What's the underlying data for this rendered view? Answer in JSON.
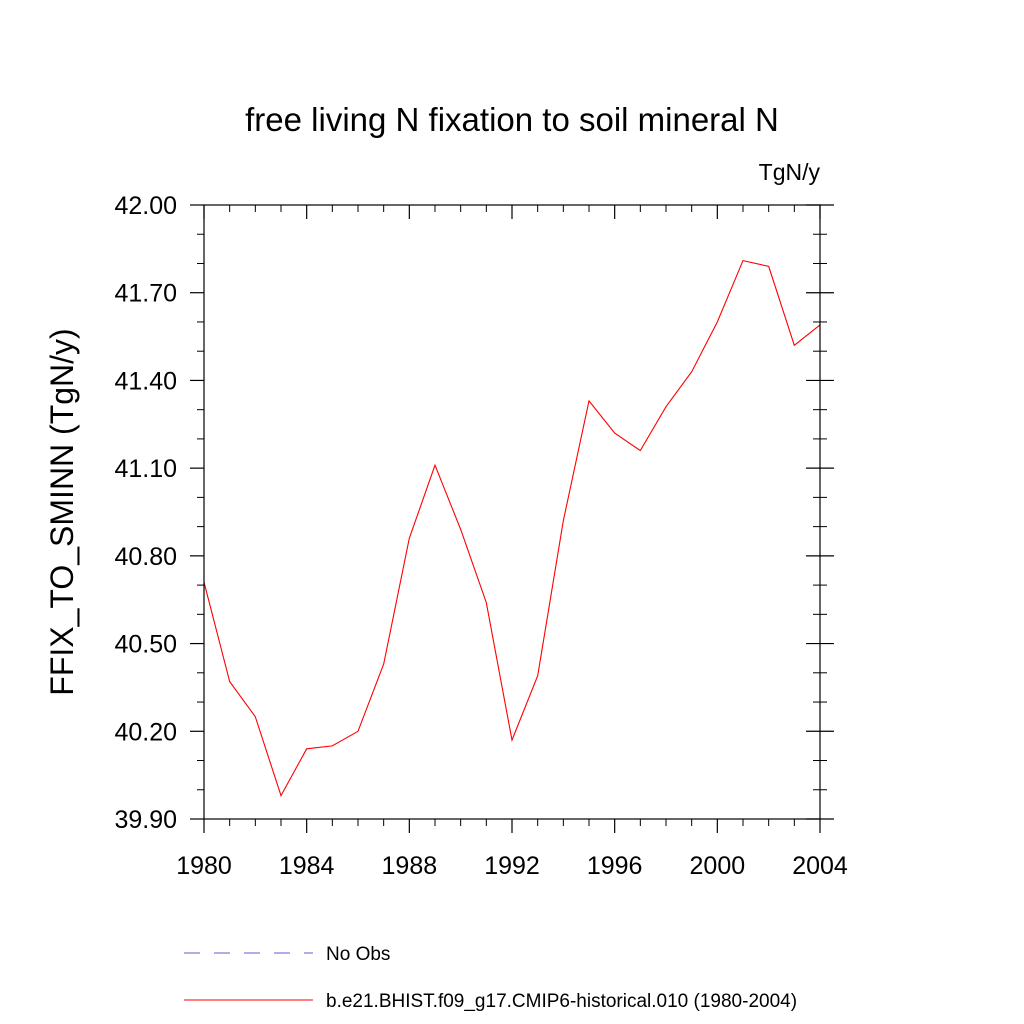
{
  "chart_data": {
    "type": "line",
    "title": "free living N fixation to soil mineral N",
    "units_label": "TgN/y",
    "xlabel": "",
    "ylabel": "FFIX_TO_SMINN  (TgN/y)",
    "xlim": [
      1980,
      2004
    ],
    "ylim": [
      39.9,
      42.0
    ],
    "x_ticks": [
      1980,
      1984,
      1988,
      1992,
      1996,
      2000,
      2004
    ],
    "x_tick_labels": [
      "1980",
      "1984",
      "1988",
      "1992",
      "1996",
      "2000",
      "2004"
    ],
    "y_ticks": [
      39.9,
      40.2,
      40.5,
      40.8,
      41.1,
      41.4,
      41.7,
      42.0
    ],
    "y_tick_labels": [
      "39.90",
      "40.20",
      "40.50",
      "40.80",
      "41.10",
      "41.40",
      "41.70",
      "42.00"
    ],
    "grid": false,
    "legend_position": "bottom",
    "series": [
      {
        "name": "No Obs",
        "color": "#6a5acd",
        "dashed": true,
        "x": [],
        "y": []
      },
      {
        "name": "b.e21.BHIST.f09_g17.CMIP6-historical.010 (1980-2004)",
        "color": "#ff0000",
        "dashed": false,
        "x": [
          1980,
          1981,
          1982,
          1983,
          1984,
          1985,
          1986,
          1987,
          1988,
          1989,
          1990,
          1991,
          1992,
          1993,
          1994,
          1995,
          1996,
          1997,
          1998,
          1999,
          2000,
          2001,
          2002,
          2003,
          2004
        ],
        "y": [
          40.71,
          40.37,
          40.25,
          39.98,
          40.14,
          40.15,
          40.2,
          40.43,
          40.86,
          41.11,
          40.89,
          40.64,
          40.17,
          40.39,
          40.92,
          41.33,
          41.22,
          41.16,
          41.31,
          41.43,
          41.6,
          41.81,
          41.79,
          41.52,
          41.59
        ]
      }
    ]
  }
}
